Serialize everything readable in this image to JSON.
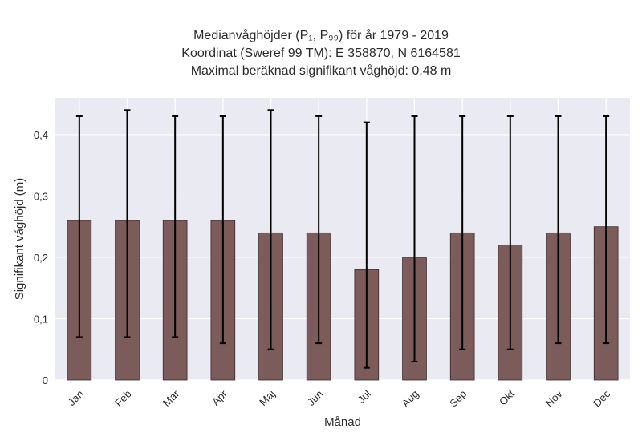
{
  "title": {
    "line1": "Medianvåghöjder (P₁, P₉₉) för år 1979 - 2019",
    "line2": "Koordinat (Sweref 99 TM): E 358870, N 6164581",
    "line3": "Maximal beräknad signifikant våghöjd: 0,48 m"
  },
  "chart_data": {
    "type": "bar",
    "categories": [
      "Jan",
      "Feb",
      "Mar",
      "Apr",
      "Maj",
      "Jun",
      "Jul",
      "Aug",
      "Sep",
      "Okt",
      "Nov",
      "Dec"
    ],
    "values": [
      0.26,
      0.26,
      0.26,
      0.26,
      0.24,
      0.24,
      0.18,
      0.2,
      0.24,
      0.22,
      0.24,
      0.25
    ],
    "error_low": [
      0.07,
      0.07,
      0.07,
      0.06,
      0.05,
      0.06,
      0.02,
      0.03,
      0.05,
      0.05,
      0.06,
      0.06
    ],
    "error_high": [
      0.43,
      0.44,
      0.43,
      0.43,
      0.44,
      0.43,
      0.42,
      0.43,
      0.43,
      0.43,
      0.43,
      0.43
    ],
    "xlabel": "Månad",
    "ylabel": "Signifikant våghöjd (m)",
    "ylim": [
      0,
      0.46
    ],
    "yticks": [
      0,
      0.1,
      0.2,
      0.3,
      0.4
    ],
    "ytick_labels": [
      "0",
      "0,1",
      "0,2",
      "0,3",
      "0,4"
    ],
    "grid": true,
    "colors": {
      "bar": "#7c5b5b",
      "bar_edge": "#3a2a2a",
      "background": "#eaeaf2",
      "grid": "#ffffff",
      "error": "#000000"
    }
  }
}
